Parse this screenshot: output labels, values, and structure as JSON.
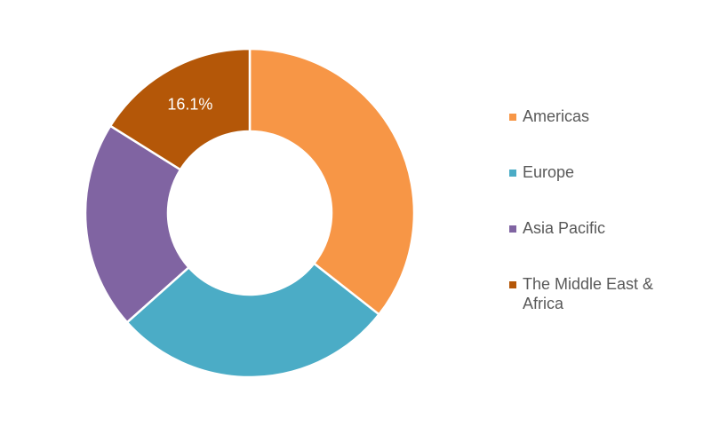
{
  "chart_data": {
    "type": "donut",
    "categories": [
      "Americas",
      "Europe",
      "Asia Pacific",
      "The Middle East & Africa"
    ],
    "values": [
      35.6,
      27.8,
      20.5,
      16.1
    ],
    "value_labels": [
      null,
      null,
      null,
      "16.1%"
    ],
    "colors": [
      "#f79646",
      "#4bacc6",
      "#8064a2",
      "#b45708"
    ]
  }
}
